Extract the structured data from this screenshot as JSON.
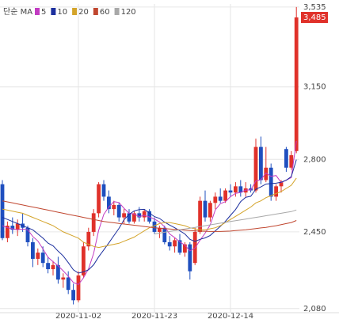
{
  "chart_data": {
    "type": "candlestick",
    "legend_title": "단순 MA",
    "categories": [
      null,
      null,
      null,
      null,
      null,
      null,
      null,
      null,
      null,
      null,
      null,
      null,
      null,
      null,
      null,
      "2020-11-02",
      null,
      null,
      null,
      null,
      null,
      null,
      null,
      null,
      null,
      null,
      null,
      null,
      null,
      null,
      "2020-11-23",
      null,
      null,
      null,
      null,
      null,
      null,
      null,
      null,
      null,
      null,
      null,
      null,
      null,
      null,
      "2020-12-14",
      null,
      null,
      null,
      null,
      null,
      null,
      null,
      null,
      null,
      null,
      null,
      null,
      null
    ],
    "open": [
      2680,
      2420,
      2480,
      2460,
      2490,
      2470,
      2400,
      2320,
      2350,
      2300,
      2270,
      2290,
      2220,
      2230,
      2170,
      2120,
      2240,
      2380,
      2450,
      2540,
      2680,
      2620,
      2560,
      2580,
      2520,
      2540,
      2500,
      2540,
      2520,
      2550,
      2500,
      2450,
      2470,
      2400,
      2380,
      2410,
      2350,
      2390,
      2300,
      2450,
      2600,
      2520,
      2590,
      2620,
      2600,
      2650,
      2640,
      2670,
      2640,
      2660,
      2650,
      2860,
      2700,
      2760,
      2620,
      2670,
      2850,
      2760,
      2840
    ],
    "high": [
      2700,
      2500,
      2520,
      2510,
      2540,
      2480,
      2420,
      2370,
      2380,
      2330,
      2310,
      2330,
      2250,
      2260,
      2200,
      2260,
      2400,
      2470,
      2560,
      2690,
      2700,
      2650,
      2600,
      2590,
      2560,
      2560,
      2550,
      2570,
      2560,
      2560,
      2520,
      2480,
      2480,
      2430,
      2420,
      2440,
      2400,
      2400,
      2470,
      2620,
      2650,
      2600,
      2640,
      2660,
      2660,
      2680,
      2690,
      2700,
      2690,
      2680,
      2900,
      2910,
      2860,
      2780,
      2680,
      2700,
      2860,
      2840,
      3535
    ],
    "low": [
      2410,
      2400,
      2440,
      2430,
      2450,
      2380,
      2280,
      2290,
      2280,
      2250,
      2240,
      2200,
      2180,
      2150,
      2100,
      2110,
      2230,
      2360,
      2430,
      2520,
      2600,
      2540,
      2530,
      2500,
      2490,
      2490,
      2490,
      2500,
      2500,
      2490,
      2440,
      2420,
      2390,
      2360,
      2350,
      2340,
      2330,
      2220,
      2290,
      2440,
      2500,
      2500,
      2560,
      2590,
      2590,
      2620,
      2620,
      2620,
      2620,
      2640,
      2640,
      2680,
      2690,
      2600,
      2600,
      2640,
      2740,
      2750,
      2830
    ],
    "close": [
      2420,
      2480,
      2460,
      2490,
      2470,
      2400,
      2320,
      2350,
      2300,
      2270,
      2290,
      2220,
      2230,
      2170,
      2120,
      2240,
      2380,
      2450,
      2540,
      2680,
      2620,
      2560,
      2580,
      2520,
      2540,
      2500,
      2540,
      2520,
      2550,
      2500,
      2450,
      2470,
      2400,
      2380,
      2410,
      2350,
      2390,
      2260,
      2450,
      2600,
      2520,
      2590,
      2620,
      2600,
      2650,
      2640,
      2670,
      2640,
      2660,
      2650,
      2860,
      2700,
      2760,
      2620,
      2670,
      2690,
      2760,
      2820,
      3485
    ],
    "up_color": "#e0312a",
    "down_color": "#1f4fbf",
    "series": [
      {
        "name": "5",
        "color": "#c23bc2",
        "values": [
          2480,
          2470,
          2465,
          2460,
          2464,
          2460,
          2428,
          2406,
          2368,
          2328,
          2306,
          2286,
          2262,
          2236,
          2206,
          2196,
          2228,
          2272,
          2346,
          2458,
          2534,
          2570,
          2596,
          2592,
          2564,
          2540,
          2536,
          2524,
          2530,
          2522,
          2512,
          2498,
          2474,
          2440,
          2422,
          2402,
          2386,
          2358,
          2372,
          2410,
          2444,
          2484,
          2556,
          2586,
          2596,
          2620,
          2636,
          2640,
          2652,
          2652,
          2696,
          2702,
          2734,
          2718,
          2722,
          2688,
          2700,
          2712,
          2889
        ]
      },
      {
        "name": "10",
        "color": "#1c2f9e",
        "values": [
          2520,
          2510,
          2500,
          2490,
          2480,
          2470,
          2460,
          2440,
          2420,
          2396,
          2383,
          2357,
          2334,
          2302,
          2267,
          2251,
          2257,
          2267,
          2291,
          2330,
          2363,
          2397,
          2432,
          2467,
          2509,
          2535,
          2551,
          2558,
          2559,
          2541,
          2524,
          2515,
          2497,
          2483,
          2470,
          2455,
          2440,
          2414,
          2404,
          2414,
          2421,
          2433,
          2455,
          2477,
          2501,
          2530,
          2558,
          2596,
          2617,
          2622,
          2656,
          2667,
          2681,
          2683,
          2685,
          2690,
          2699,
          2717,
          2799
        ]
      },
      {
        "name": "20",
        "color": "#d4a42a",
        "values": [
          2560,
          2555,
          2550,
          2545,
          2540,
          2530,
          2520,
          2510,
          2500,
          2490,
          2480,
          2465,
          2450,
          2440,
          2430,
          2420,
          2400,
          2390,
          2380,
          2375,
          2380,
          2385,
          2390,
          2395,
          2405,
          2415,
          2425,
          2440,
          2455,
          2470,
          2480,
          2490,
          2495,
          2495,
          2490,
          2485,
          2480,
          2470,
          2465,
          2460,
          2460,
          2465,
          2470,
          2480,
          2495,
          2510,
          2525,
          2540,
          2555,
          2570,
          2590,
          2600,
          2615,
          2625,
          2635,
          2645,
          2660,
          2675,
          2710
        ]
      },
      {
        "name": "60",
        "color": "#c0462f",
        "values": [
          2600,
          2595,
          2590,
          2585,
          2580,
          2575,
          2570,
          2565,
          2560,
          2555,
          2550,
          2545,
          2540,
          2535,
          2530,
          2525,
          2520,
          2515,
          2510,
          2505,
          2500,
          2497,
          2494,
          2491,
          2488,
          2485,
          2482,
          2479,
          2476,
          2473,
          2470,
          2468,
          2466,
          2464,
          2462,
          2460,
          2458,
          2456,
          2455,
          2454,
          2453,
          2452,
          2452,
          2452,
          2453,
          2454,
          2456,
          2458,
          2460,
          2463,
          2466,
          2469,
          2472,
          2476,
          2480,
          2485,
          2490,
          2495,
          2505
        ]
      },
      {
        "name": "120",
        "color": "#a8a8a8",
        "values": [
          null,
          null,
          null,
          null,
          null,
          null,
          null,
          null,
          null,
          null,
          null,
          null,
          null,
          null,
          null,
          null,
          null,
          null,
          null,
          null,
          null,
          null,
          null,
          null,
          null,
          null,
          null,
          null,
          null,
          null,
          2440,
          2444,
          2448,
          2452,
          2456,
          2460,
          2464,
          2468,
          2472,
          2476,
          2480,
          2484,
          2488,
          2492,
          2496,
          2500,
          2504,
          2508,
          2512,
          2516,
          2520,
          2524,
          2528,
          2532,
          2536,
          2540,
          2544,
          2548,
          2556
        ]
      }
    ],
    "ylim": [
      2060,
      3550
    ],
    "yticks": [
      {
        "value": 2080,
        "label": "2,080"
      },
      {
        "value": 2450,
        "label": "2,450"
      },
      {
        "value": 2800,
        "label": "2,800"
      },
      {
        "value": 3150,
        "label": "3,150"
      },
      {
        "value": 3535,
        "label": "3,535"
      }
    ],
    "last_price": {
      "value": 3485,
      "label": "3,485"
    },
    "grid": true
  }
}
